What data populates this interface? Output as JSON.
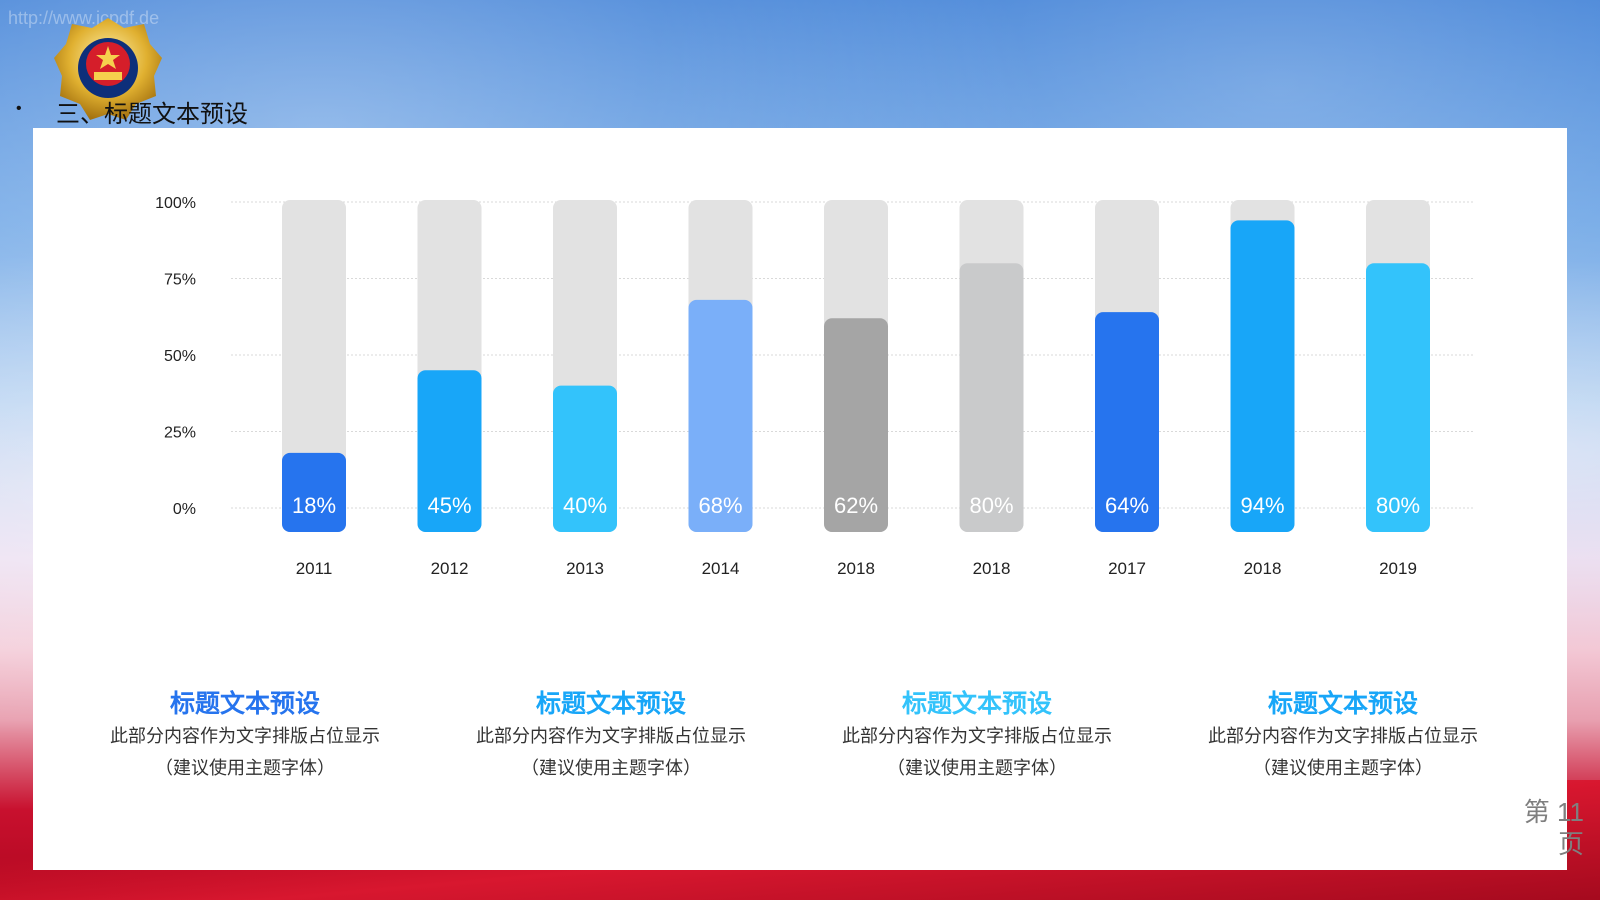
{
  "watermark_url": "http://www.jcpdf.de",
  "header": {
    "bullet": "•",
    "title": "三、标题文本预设"
  },
  "colors": {
    "blue_dark": "#2674EE",
    "blue": "#18A6F8",
    "cyan": "#33C3FB",
    "light_blue": "#7AAFF9",
    "gray": "#A5A5A5",
    "light_gray": "#C9CACB",
    "track": "#E2E2E2"
  },
  "chart_data": {
    "type": "bar",
    "categories": [
      "2011",
      "2012",
      "2013",
      "2014",
      "2018",
      "2018",
      "2017",
      "2018",
      "2019"
    ],
    "values": [
      18,
      45,
      40,
      68,
      62,
      80,
      64,
      94,
      80
    ],
    "value_labels": [
      "18%",
      "45%",
      "40%",
      "68%",
      "62%",
      "80%",
      "64%",
      "94%",
      "80%"
    ],
    "bar_colors": [
      "#2674EE",
      "#18A6F8",
      "#33C3FB",
      "#7AAFF9",
      "#A5A5A5",
      "#C9CACB",
      "#2674EE",
      "#18A6F8",
      "#33C3FB"
    ],
    "yticks": [
      "0%",
      "25%",
      "50%",
      "75%",
      "100%"
    ],
    "ylim": [
      0,
      100
    ],
    "grid": true,
    "background_track": true
  },
  "info_blocks": [
    {
      "title": "标题文本预设",
      "line1": "此部分内容作为文字排版占位显示",
      "line2": "（建议使用主题字体）",
      "color": "#2674EE"
    },
    {
      "title": "标题文本预设",
      "line1": "此部分内容作为文字排版占位显示",
      "line2": "（建议使用主题字体）",
      "color": "#18A6F8"
    },
    {
      "title": "标题文本预设",
      "line1": "此部分内容作为文字排版占位显示",
      "line2": "（建议使用主题字体）",
      "color": "#33C3FB"
    },
    {
      "title": "标题文本预设",
      "line1": "此部分内容作为文字排版占位显示",
      "line2": "（建议使用主题字体）",
      "color": "#18A6F8"
    }
  ],
  "page": {
    "line1": "第 11",
    "line2": "页"
  }
}
